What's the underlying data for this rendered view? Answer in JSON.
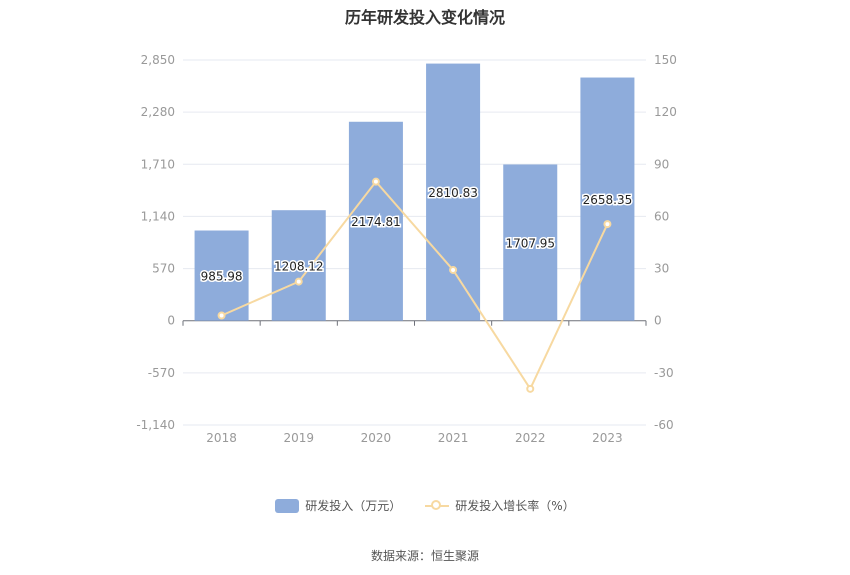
{
  "chart_data": {
    "type": "bar",
    "title": "历年研发投入变化情况",
    "categories": [
      "2018",
      "2019",
      "2020",
      "2021",
      "2022",
      "2023"
    ],
    "series": [
      {
        "name": "研发投入（万元）",
        "type": "bar",
        "axis": "left",
        "values": [
          985.98,
          1208.12,
          2174.81,
          2810.83,
          1707.95,
          2658.35
        ],
        "labels": [
          "985.98",
          "1208.12",
          "2174.81",
          "2810.83",
          "1707.95",
          "2658.35"
        ]
      },
      {
        "name": "研发投入增长率（%）",
        "type": "line",
        "axis": "right",
        "values": [
          3.0,
          22.5,
          80.0,
          29.2,
          -39.2,
          55.6
        ]
      }
    ],
    "y_left": {
      "ylim": [
        -1140,
        2850
      ],
      "ticks": [
        -1140,
        -570,
        0,
        570,
        1140,
        1710,
        2280,
        2850
      ],
      "tick_labels": [
        "-1,140",
        "-570",
        "0",
        "570",
        "1,140",
        "1,710",
        "2,280",
        "2,850"
      ]
    },
    "y_right": {
      "ylim": [
        -60,
        150
      ],
      "ticks": [
        -60,
        -30,
        0,
        30,
        60,
        90,
        120,
        150
      ],
      "tick_labels": [
        "-60",
        "-30",
        "0",
        "30",
        "60",
        "90",
        "120",
        "150"
      ]
    },
    "grid": true,
    "legend_position": "bottom",
    "colors": {
      "bar": "#8eacdb",
      "line": "#f7d9a1",
      "grid": "#e6e9f0",
      "axis_text": "#999999"
    }
  },
  "legend": {
    "bar_label": "研发投入（万元）",
    "line_label": "研发投入增长率（%）"
  },
  "source": "数据来源：恒生聚源"
}
